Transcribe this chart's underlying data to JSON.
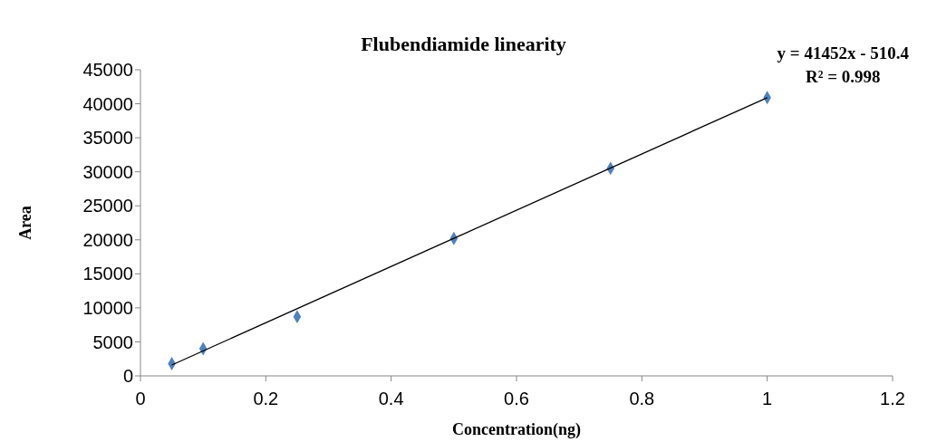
{
  "chart_data": {
    "type": "scatter",
    "title": "Flubendiamide linearity",
    "xlabel": "Concentration(ng)",
    "ylabel": "Area",
    "annotations": [
      "y = 41452x - 510.4",
      "R² = 0.998"
    ],
    "series": [
      {
        "color": "#4f81bd",
        "x": [
          0.05,
          0.1,
          0.25,
          0.5,
          0.75,
          1
        ],
        "values": [
          1800,
          4000,
          8700,
          20200,
          30500,
          40900
        ]
      },
      {
        "type": "line",
        "marker": "none",
        "color": "#000000",
        "x": [
          0.05,
          1
        ],
        "values": [
          1600,
          40900
        ]
      }
    ],
    "xlim": [
      0,
      1.2
    ],
    "xticks": [
      0,
      0.2,
      0.4,
      0.6,
      0.8,
      1,
      1.2
    ],
    "ylim": [
      0,
      45000
    ],
    "yticks": [
      0,
      5000,
      10000,
      15000,
      20000,
      25000,
      30000,
      35000,
      40000,
      45000
    ],
    "marker": "diamond",
    "grid": false,
    "legend": false
  }
}
